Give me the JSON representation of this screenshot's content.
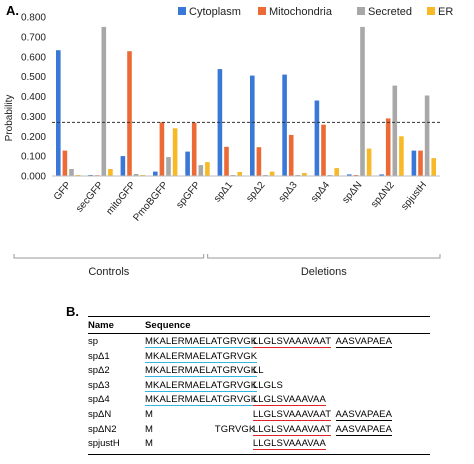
{
  "panel_a_label": "A.",
  "panel_b_label": "B.",
  "chart_data": {
    "type": "bar",
    "ylabel": "Probability",
    "xlabel": "",
    "ylim": [
      0,
      0.8
    ],
    "yticks": [
      "0.000",
      "0.100",
      "0.200",
      "0.300",
      "0.400",
      "0.500",
      "0.600",
      "0.700",
      "0.800"
    ],
    "legend_position": "top",
    "reference_line": 0.27,
    "categories": [
      "GFP",
      "secGFP",
      "mitoGFP",
      "PmoBGFP",
      "spGFP",
      "spΔ1",
      "spΔ2",
      "spΔ3",
      "spΔ4",
      "spΔN",
      "spΔN2",
      "spjustH"
    ],
    "series": [
      {
        "name": "Cytoplasm",
        "color": "#3a78d8",
        "values": [
          0.633,
          0.005,
          0.1,
          0.022,
          0.123,
          0.538,
          0.505,
          0.51,
          0.38,
          0.008,
          0.008,
          0.128
        ]
      },
      {
        "name": "Mitochondria",
        "color": "#ec6a35",
        "values": [
          0.128,
          0.004,
          0.628,
          0.27,
          0.268,
          0.147,
          0.145,
          0.207,
          0.258,
          0.005,
          0.29,
          0.128
        ]
      },
      {
        "name": "Secreted",
        "color": "#a8a8a8",
        "values": [
          0.035,
          0.75,
          0.01,
          0.095,
          0.055,
          0.005,
          0.005,
          0.005,
          0.005,
          0.75,
          0.455,
          0.405
        ]
      },
      {
        "name": "ER",
        "color": "#f7b926",
        "values": [
          0.005,
          0.035,
          0.005,
          0.24,
          0.07,
          0.02,
          0.022,
          0.015,
          0.04,
          0.138,
          0.2,
          0.09
        ]
      }
    ],
    "groups": [
      {
        "label": "Controls",
        "from": 0,
        "to": 4
      },
      {
        "label": "Deletions",
        "from": 5,
        "to": 11
      }
    ]
  },
  "table": {
    "header_name": "Name",
    "header_seq": "Sequence",
    "rows": [
      {
        "name": "sp",
        "indent": 0,
        "segments": [
          {
            "text": "MKALERMAELATGRVGK",
            "underline": "cyan"
          },
          {
            "text": "LLGLSVAAAVAAT",
            "underline": "red"
          },
          {
            "text": "AASVAPAEA",
            "underline": "black"
          }
        ]
      },
      {
        "name": "spΔ1",
        "indent": 0,
        "segments": [
          {
            "text": "MKALERMAELATGRVGK",
            "underline": "cyan"
          }
        ]
      },
      {
        "name": "spΔ2",
        "indent": 0,
        "segments": [
          {
            "text": "MKALERMAELATGRVGK",
            "underline": "cyan"
          },
          {
            "text": "LL",
            "underline": "none"
          }
        ]
      },
      {
        "name": "spΔ3",
        "indent": 0,
        "segments": [
          {
            "text": "MKALERMAELATGRVGK",
            "underline": "cyan"
          },
          {
            "text": "LLGLS",
            "underline": "none"
          }
        ]
      },
      {
        "name": "spΔ4",
        "indent": 0,
        "segments": [
          {
            "text": "MKALERMAELATGRVGK",
            "underline": "cyan"
          },
          {
            "text": "LLGLSVAAAVAA",
            "underline": "red"
          }
        ]
      },
      {
        "name": "spΔN",
        "indent": 0,
        "segments": [
          {
            "text": "M",
            "underline": "none"
          },
          {
            "text": "LLGLSVAAAVAAT",
            "underline": "red",
            "align": "seq2"
          },
          {
            "text": "AASVAPAEA",
            "underline": "black"
          }
        ]
      },
      {
        "name": "spΔN2",
        "indent": 0,
        "segments": [
          {
            "text": "M",
            "underline": "none"
          },
          {
            "text": "TGRVGK",
            "underline": "none",
            "align": "trgvgk"
          },
          {
            "text": "LLGLSVAAAVAAT",
            "underline": "red"
          },
          {
            "text": "AASVAPAEA",
            "underline": "black"
          }
        ]
      },
      {
        "name": "spjustH",
        "indent": 0,
        "segments": [
          {
            "text": "M",
            "underline": "none"
          },
          {
            "text": "LLGLSVAAAVAA",
            "underline": "red",
            "align": "seq2"
          }
        ]
      }
    ]
  }
}
